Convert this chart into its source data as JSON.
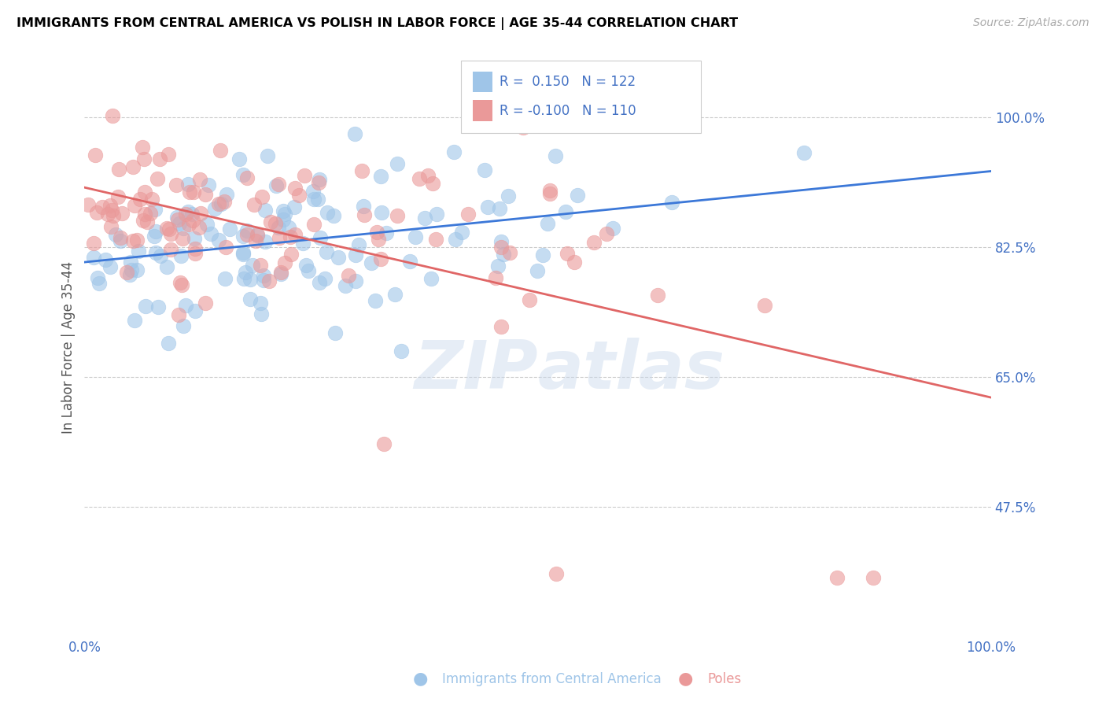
{
  "title": "IMMIGRANTS FROM CENTRAL AMERICA VS POLISH IN LABOR FORCE | AGE 35-44 CORRELATION CHART",
  "source": "Source: ZipAtlas.com",
  "ylabel": "In Labor Force | Age 35-44",
  "ytick_vals": [
    0.475,
    0.65,
    0.825,
    1.0
  ],
  "ytick_labels": [
    "47.5%",
    "65.0%",
    "82.5%",
    "100.0%"
  ],
  "xlim": [
    0.0,
    1.0
  ],
  "ylim": [
    0.3,
    1.08
  ],
  "blue_R": 0.15,
  "blue_N": 122,
  "pink_R": -0.1,
  "pink_N": 110,
  "blue_color": "#9fc5e8",
  "pink_color": "#ea9999",
  "blue_line_color": "#3c78d8",
  "pink_line_color": "#e06666",
  "legend_label_blue": "Immigrants from Central America",
  "legend_label_pink": "Poles",
  "watermark": "ZIPatlas",
  "background_color": "#ffffff",
  "grid_color": "#cccccc",
  "tick_label_color": "#4472c4",
  "title_color": "#000000",
  "source_color": "#aaaaaa",
  "marker_size": 180,
  "marker_alpha": 0.6
}
